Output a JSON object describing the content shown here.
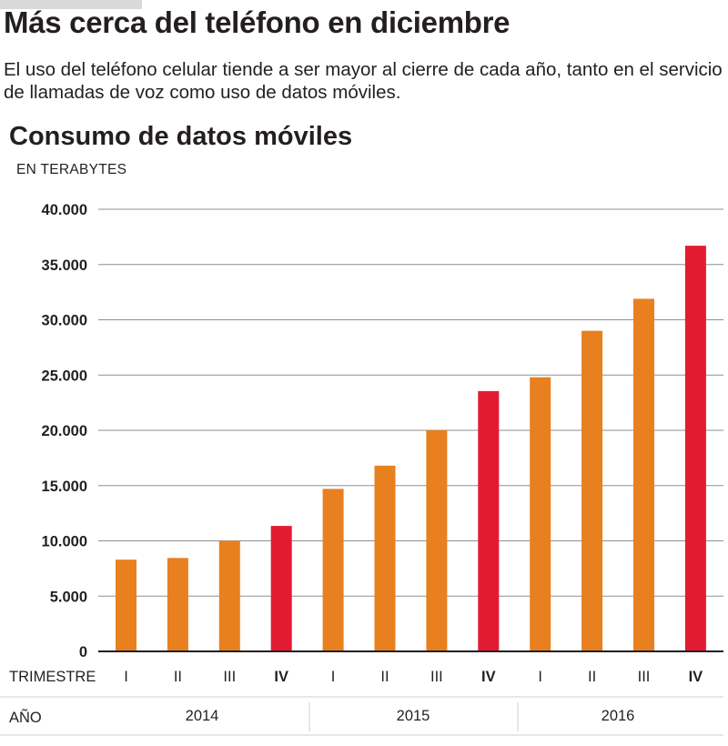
{
  "header": {
    "headline": "Más cerca del teléfono en diciembre",
    "subtitle": "El uso del teléfono celular tiende a ser mayor al cierre de cada año, tanto en el servicio de llamadas de voz como uso de datos móviles."
  },
  "chart_data": {
    "type": "bar",
    "title": "Consumo de datos móviles",
    "ylabel": "EN TERABYTES",
    "ylim": [
      0,
      40000
    ],
    "yticks": [
      0,
      5000,
      10000,
      15000,
      20000,
      25000,
      30000,
      35000,
      40000
    ],
    "ytick_labels": [
      "0",
      "5.000",
      "10.000",
      "15.000",
      "20.000",
      "25.000",
      "30.000",
      "35.000",
      "40.000"
    ],
    "grid": true,
    "x_row_labels": {
      "quarter": "TRIMESTRE",
      "year": "AÑO"
    },
    "categories": [
      "I",
      "II",
      "III",
      "IV",
      "I",
      "II",
      "III",
      "IV",
      "I",
      "II",
      "III",
      "IV"
    ],
    "years": [
      {
        "label": "2014",
        "quarters": 4
      },
      {
        "label": "2015",
        "quarters": 4
      },
      {
        "label": "2016",
        "quarters": 4
      }
    ],
    "values": [
      8300,
      8450,
      10000,
      11350,
      14700,
      16800,
      20000,
      23550,
      24800,
      29000,
      31900,
      36700
    ],
    "highlight": [
      false,
      false,
      false,
      true,
      false,
      false,
      false,
      true,
      false,
      false,
      false,
      true
    ],
    "colors": {
      "normal": "#e8801f",
      "highlight": "#e31b32",
      "grid": "#8f8f8f",
      "baseline": "#231f20",
      "separator": "#cfcfcf"
    }
  }
}
